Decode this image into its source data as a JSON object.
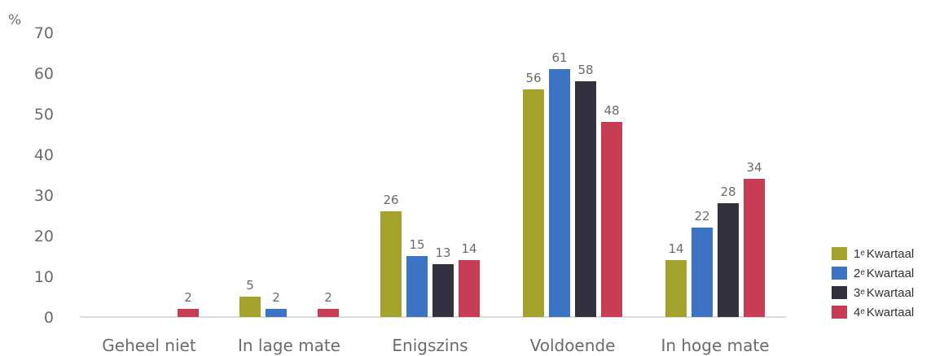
{
  "chart_data": {
    "type": "bar",
    "ylabel": "%",
    "ylim": [
      0,
      70
    ],
    "yticks": [
      0,
      10,
      20,
      30,
      40,
      50,
      60,
      70
    ],
    "grid": false,
    "legend_position": "right",
    "categories": [
      "Geheel niet",
      "In lage mate",
      "Enigszins",
      "Voldoende",
      "In hoge mate"
    ],
    "series": [
      {
        "name": "1e Kwartaal",
        "num": "1",
        "sup": "e",
        "label": "Kwartaal",
        "color": "#a3a32c",
        "values": [
          null,
          5,
          26,
          56,
          14
        ]
      },
      {
        "name": "2e Kwartaal",
        "num": "2",
        "sup": "e",
        "label": "Kwartaal",
        "color": "#3c74c3",
        "values": [
          null,
          2,
          15,
          61,
          22
        ]
      },
      {
        "name": "3e Kwartaal",
        "num": "3",
        "sup": "e",
        "label": "Kwartaal",
        "color": "#35303f",
        "values": [
          null,
          null,
          13,
          58,
          28
        ]
      },
      {
        "name": "4e Kwartaal",
        "num": "4",
        "sup": "e",
        "label": "Kwartaal",
        "color": "#c63d55",
        "values": [
          2,
          2,
          14,
          48,
          34
        ]
      }
    ]
  }
}
